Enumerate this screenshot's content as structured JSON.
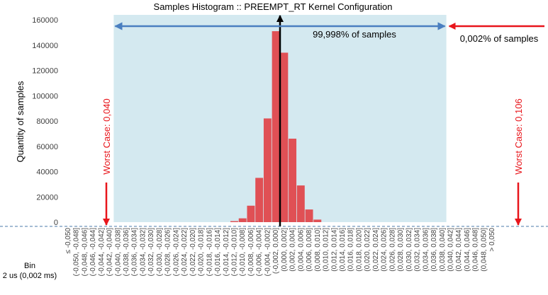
{
  "chart_data": {
    "type": "bar",
    "title": "Samples Histogram :: PREEMPT_RT Kernel Configuration",
    "ylabel": "Quantity of samples",
    "xlabel_lines": [
      "Bin",
      "2 us (0,002 ms)"
    ],
    "ylim": [
      0,
      160000
    ],
    "yticks": [
      0,
      20000,
      40000,
      60000,
      80000,
      100000,
      120000,
      140000,
      160000
    ],
    "categories": [
      "≤ -0,050",
      "(-0,050, -0,048]",
      "(-0,048, -0,046]",
      "(-0,046, -0,044]",
      "(-0,044, -0,042]",
      "(-0,042, -0,040]",
      "(-0,040, -0,038]",
      "(-0,038, -0,036]",
      "(-0,036, -0,034]",
      "(-0,034, -0,032]",
      "(-0,032, -0,030]",
      "(-0,030, -0,028]",
      "(-0,028, -0,026]",
      "(-0,026, -0,024]",
      "(-0,024, -0,022]",
      "(-0,022, -0,020]",
      "(-0,020, -0,018]",
      "(-0,018, -0,016]",
      "(-0,016, -0,014]",
      "(-0,014, -0,012]",
      "(-0,012, -0,010]",
      "(-0,010, -0,008]",
      "(-0,008, -0,006]",
      "(-0,006, -0,004]",
      "(-0,004, -0,002]",
      "(-0,002, 0,000]",
      "(0,000, 0,002]",
      "(0,002, 0,004]",
      "(0,004, 0,006]",
      "(0,006, 0,008]",
      "(0,008, 0,010]",
      "(0,010, 0,012]",
      "(0,012, 0,014]",
      "(0,014, 0,016]",
      "(0,016, 0,018]",
      "(0,018, 0,020]",
      "(0,020, 0,022]",
      "(0,022, 0,024]",
      "(0,024, 0,026]",
      "(0,026, 0,028]",
      "(0,028, 0,030]",
      "(0,030, 0,032]",
      "(0,032, 0,034]",
      "(0,034, 0,036]",
      "(0,036, 0,038]",
      "(0,038, 0,040]",
      "(0,040, 0,042]",
      "(0,042, 0,044]",
      "(0,044, 0,046]",
      "(0,046, 0,048]",
      "(0,048, 0,050]",
      "> 0,050"
    ],
    "values": [
      0,
      0,
      0,
      0,
      0,
      0,
      0,
      0,
      0,
      0,
      0,
      0,
      0,
      0,
      0,
      0,
      0,
      0,
      0,
      0,
      800,
      3000,
      13000,
      35000,
      82000,
      151000,
      134000,
      66000,
      29000,
      10000,
      2000,
      0,
      0,
      0,
      0,
      0,
      0,
      0,
      0,
      0,
      0,
      0,
      0,
      0,
      0,
      0,
      0,
      0,
      0,
      0,
      0,
      0
    ],
    "bar_color": "#e05055",
    "shaded_range_bins": [
      6,
      46
    ],
    "shaded_color": "#d4e9f0",
    "mean_line_bin_edge": 26,
    "annotations": {
      "inside": "99,998% of samples",
      "outside": "0,002% of samples",
      "worst_left": "Worst Case: 0,040",
      "worst_right": "Worst Case: 0,106"
    },
    "colors": {
      "arrow_blue": "#4a7fc0",
      "arrow_red": "#e8151b",
      "baseline_dashed": "#4a7aa8"
    }
  }
}
